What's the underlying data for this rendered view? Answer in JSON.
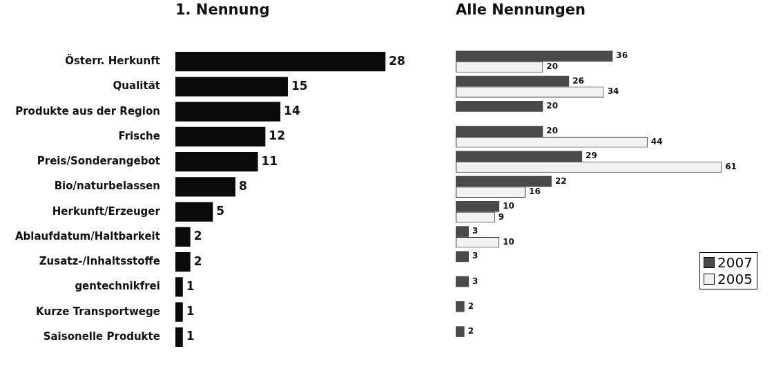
{
  "chart_data": [
    {
      "type": "bar",
      "title": "1. Nennung",
      "orientation": "horizontal",
      "data_labels": true,
      "grid": false,
      "legend": false,
      "tick_labels": "y",
      "categories": [
        "Österr. Herkunft",
        "Qualität",
        "Produkte aus der Region",
        "Frische",
        "Preis/Sonderangebot",
        "Bio/naturbelassen",
        "Herkunft/Erzeuger",
        "Ablaufdatum/Haltbarkeit",
        "Zusatz-/Inhaltsstoffe",
        "gentechnikfrei",
        "Kurze Transportwege",
        "Saisonelle Produkte"
      ],
      "values": [
        28,
        15,
        14,
        12,
        11,
        8,
        5,
        2,
        2,
        1,
        1,
        1
      ],
      "color": "#0a0a0a"
    },
    {
      "type": "bar",
      "title": "Alle Nennungen",
      "orientation": "horizontal",
      "data_labels": true,
      "grid": false,
      "legend": "bottom right",
      "tick_labels": false,
      "categories": [
        null,
        null,
        null,
        null,
        null,
        null,
        null,
        null,
        null,
        null,
        null,
        null
      ],
      "series": [
        {
          "name": "2007",
          "color": "#4a4a4a",
          "values": [
            36,
            26,
            20,
            20,
            29,
            22,
            10,
            3,
            3,
            3,
            2,
            2
          ]
        },
        {
          "name": "2005",
          "color": "#f2f2f2",
          "values": [
            20,
            34,
            null,
            44,
            61,
            16,
            9,
            10,
            null,
            null,
            null,
            null
          ]
        }
      ]
    }
  ]
}
